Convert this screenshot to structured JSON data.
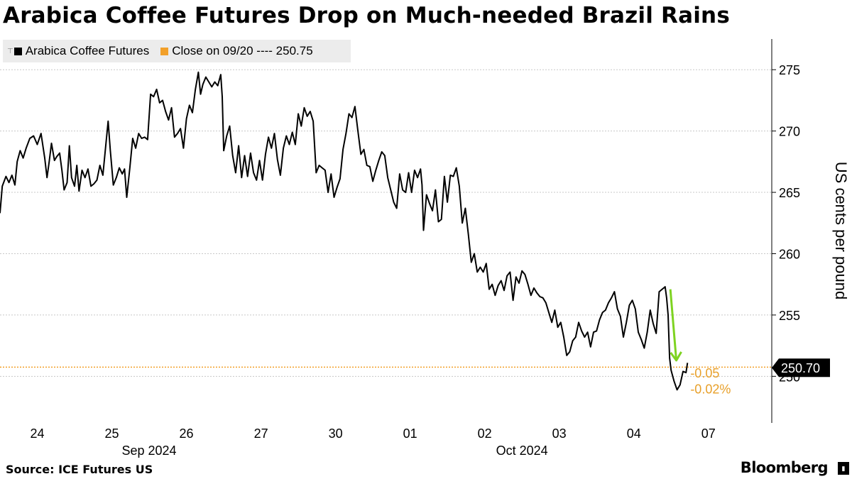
{
  "headline": "Arabica Coffee Futures Drop on Much-needed Brazil Rains",
  "legend": {
    "series_label": "Arabica Coffee Futures",
    "close_label": "Close on 09/20 ---- 250.75"
  },
  "colors": {
    "series": "#000000",
    "close": "#f2a02a",
    "arrow": "#7ed321",
    "change": "#e8a02a",
    "grid": "#c8c8c8"
  },
  "source": "Source: ICE Futures US",
  "brand": "Bloomberg",
  "chart_data": {
    "type": "line",
    "title": "Arabica Coffee Futures Drop on Much-needed Brazil Rains",
    "ylabel": "US cents per pound",
    "ylim": [
      246.2,
      277.5
    ],
    "y_ticks": [
      250,
      255,
      260,
      265,
      270,
      275
    ],
    "x_ticks": [
      "24",
      "25",
      "26",
      "27",
      "30",
      "01",
      "02",
      "03",
      "04",
      "07"
    ],
    "x_groups": [
      "Sep 2024",
      "Oct 2024"
    ],
    "x_range": [
      0,
      10.35
    ],
    "reference_line": {
      "label": "Close on 09/20",
      "value": 250.75
    },
    "last_value": {
      "value": 250.7,
      "label": "250.70"
    },
    "change": {
      "abs": "-0.05",
      "pct": "-0.02%"
    },
    "series": [
      {
        "name": "Arabica Coffee Futures",
        "points": [
          [
            0.0,
            263.3
          ],
          [
            0.03,
            265.5
          ],
          [
            0.08,
            266.3
          ],
          [
            0.12,
            265.8
          ],
          [
            0.16,
            266.4
          ],
          [
            0.2,
            265.6
          ],
          [
            0.23,
            267.5
          ],
          [
            0.27,
            268.4
          ],
          [
            0.31,
            267.8
          ],
          [
            0.35,
            268.6
          ],
          [
            0.4,
            269.4
          ],
          [
            0.45,
            269.6
          ],
          [
            0.5,
            268.9
          ],
          [
            0.55,
            269.8
          ],
          [
            0.6,
            267.8
          ],
          [
            0.63,
            266.2
          ],
          [
            0.66,
            267.5
          ],
          [
            0.69,
            269.0
          ],
          [
            0.73,
            267.6
          ],
          [
            0.76,
            267.9
          ],
          [
            0.8,
            268.2
          ],
          [
            0.83,
            266.8
          ],
          [
            0.86,
            265.2
          ],
          [
            0.9,
            265.8
          ],
          [
            0.93,
            268.8
          ],
          [
            0.96,
            266.2
          ],
          [
            1.0,
            265.5
          ],
          [
            1.03,
            267.2
          ],
          [
            1.06,
            265.1
          ],
          [
            1.1,
            266.8
          ],
          [
            1.14,
            266.2
          ],
          [
            1.18,
            266.9
          ],
          [
            1.22,
            265.5
          ],
          [
            1.26,
            265.7
          ],
          [
            1.3,
            266.0
          ],
          [
            1.34,
            267.2
          ],
          [
            1.38,
            266.4
          ],
          [
            1.42,
            268.9
          ],
          [
            1.45,
            270.8
          ],
          [
            1.48,
            268.4
          ],
          [
            1.52,
            265.6
          ],
          [
            1.56,
            266.2
          ],
          [
            1.6,
            267.0
          ],
          [
            1.64,
            266.5
          ],
          [
            1.67,
            266.9
          ],
          [
            1.7,
            264.6
          ],
          [
            1.74,
            266.9
          ],
          [
            1.78,
            269.4
          ],
          [
            1.82,
            268.6
          ],
          [
            1.86,
            269.8
          ],
          [
            1.9,
            269.4
          ],
          [
            1.94,
            269.5
          ],
          [
            1.98,
            269.3
          ],
          [
            2.02,
            273.0
          ],
          [
            2.06,
            272.8
          ],
          [
            2.1,
            273.4
          ],
          [
            2.14,
            272.3
          ],
          [
            2.18,
            272.5
          ],
          [
            2.22,
            271.6
          ],
          [
            2.26,
            270.9
          ],
          [
            2.3,
            271.9
          ],
          [
            2.34,
            269.5
          ],
          [
            2.38,
            269.8
          ],
          [
            2.42,
            270.2
          ],
          [
            2.46,
            268.6
          ],
          [
            2.5,
            271.0
          ],
          [
            2.54,
            272.1
          ],
          [
            2.58,
            271.5
          ],
          [
            2.62,
            273.4
          ],
          [
            2.66,
            274.8
          ],
          [
            2.69,
            273.0
          ],
          [
            2.72,
            273.8
          ],
          [
            2.76,
            274.4
          ],
          [
            2.8,
            274.0
          ],
          [
            2.84,
            273.6
          ],
          [
            2.88,
            274.0
          ],
          [
            2.92,
            273.7
          ],
          [
            2.96,
            274.6
          ],
          [
            2.98,
            272.8
          ],
          [
            3.0,
            268.4
          ],
          [
            3.04,
            269.6
          ],
          [
            3.08,
            270.4
          ],
          [
            3.12,
            268.0
          ],
          [
            3.16,
            266.6
          ],
          [
            3.2,
            268.8
          ],
          [
            3.24,
            266.2
          ],
          [
            3.28,
            268.0
          ],
          [
            3.32,
            266.3
          ],
          [
            3.36,
            268.2
          ],
          [
            3.4,
            266.6
          ],
          [
            3.44,
            266.0
          ],
          [
            3.48,
            267.6
          ],
          [
            3.52,
            266.0
          ],
          [
            3.56,
            268.1
          ],
          [
            3.6,
            269.5
          ],
          [
            3.64,
            268.6
          ],
          [
            3.68,
            269.8
          ],
          [
            3.72,
            267.7
          ],
          [
            3.76,
            266.4
          ],
          [
            3.8,
            268.6
          ],
          [
            3.84,
            269.6
          ],
          [
            3.88,
            268.9
          ],
          [
            3.92,
            269.9
          ],
          [
            3.96,
            268.9
          ],
          [
            4.0,
            271.4
          ],
          [
            4.04,
            270.4
          ],
          [
            4.08,
            271.9
          ],
          [
            4.12,
            271.2
          ],
          [
            4.16,
            271.6
          ],
          [
            4.2,
            270.8
          ],
          [
            4.24,
            266.6
          ],
          [
            4.28,
            267.2
          ],
          [
            4.32,
            267.0
          ],
          [
            4.36,
            266.8
          ],
          [
            4.4,
            265.0
          ],
          [
            4.44,
            266.5
          ],
          [
            4.48,
            264.6
          ],
          [
            4.52,
            265.4
          ],
          [
            4.56,
            266.1
          ],
          [
            4.6,
            268.5
          ],
          [
            4.64,
            269.8
          ],
          [
            4.68,
            271.4
          ],
          [
            4.72,
            271.1
          ],
          [
            4.76,
            272.0
          ],
          [
            4.8,
            270.0
          ],
          [
            4.84,
            268.1
          ],
          [
            4.88,
            268.5
          ],
          [
            4.92,
            267.2
          ],
          [
            4.96,
            267.1
          ],
          [
            5.0,
            265.9
          ],
          [
            5.04,
            266.8
          ],
          [
            5.08,
            267.6
          ],
          [
            5.12,
            268.3
          ],
          [
            5.16,
            268.0
          ],
          [
            5.2,
            266.2
          ],
          [
            5.24,
            265.2
          ],
          [
            5.28,
            264.2
          ],
          [
            5.32,
            263.7
          ],
          [
            5.36,
            266.5
          ],
          [
            5.4,
            265.2
          ],
          [
            5.44,
            265.0
          ],
          [
            5.48,
            266.6
          ],
          [
            5.52,
            265.0
          ],
          [
            5.56,
            266.8
          ],
          [
            5.6,
            266.2
          ],
          [
            5.64,
            266.9
          ],
          [
            5.66,
            265.6
          ],
          [
            5.68,
            261.9
          ],
          [
            5.72,
            264.8
          ],
          [
            5.76,
            264.1
          ],
          [
            5.8,
            263.5
          ],
          [
            5.84,
            265.2
          ],
          [
            5.88,
            262.6
          ],
          [
            5.92,
            262.8
          ],
          [
            5.96,
            266.3
          ],
          [
            6.0,
            264.2
          ],
          [
            6.04,
            266.4
          ],
          [
            6.08,
            266.3
          ],
          [
            6.12,
            267.0
          ],
          [
            6.16,
            265.5
          ],
          [
            6.2,
            262.5
          ],
          [
            6.24,
            263.7
          ],
          [
            6.28,
            261.6
          ],
          [
            6.32,
            259.3
          ],
          [
            6.36,
            260.0
          ],
          [
            6.4,
            258.5
          ],
          [
            6.44,
            258.9
          ],
          [
            6.48,
            258.5
          ],
          [
            6.52,
            259.2
          ],
          [
            6.56,
            257.1
          ],
          [
            6.6,
            257.5
          ],
          [
            6.64,
            256.6
          ],
          [
            6.68,
            257.4
          ],
          [
            6.72,
            257.8
          ],
          [
            6.76,
            257.0
          ],
          [
            6.8,
            258.2
          ],
          [
            6.84,
            258.5
          ],
          [
            6.88,
            256.2
          ],
          [
            6.92,
            258.1
          ],
          [
            6.96,
            257.6
          ],
          [
            7.0,
            258.6
          ],
          [
            7.04,
            258.3
          ],
          [
            7.08,
            257.5
          ],
          [
            7.12,
            256.6
          ],
          [
            7.16,
            257.2
          ],
          [
            7.2,
            256.8
          ],
          [
            7.24,
            256.5
          ],
          [
            7.28,
            256.4
          ],
          [
            7.32,
            256.0
          ],
          [
            7.36,
            255.2
          ],
          [
            7.4,
            254.4
          ],
          [
            7.44,
            255.4
          ],
          [
            7.48,
            254.0
          ],
          [
            7.52,
            254.4
          ],
          [
            7.56,
            253.2
          ],
          [
            7.6,
            251.7
          ],
          [
            7.64,
            252.0
          ],
          [
            7.68,
            252.9
          ],
          [
            7.72,
            253.2
          ],
          [
            7.76,
            254.4
          ],
          [
            7.8,
            253.7
          ],
          [
            7.84,
            253.2
          ],
          [
            7.88,
            253.6
          ],
          [
            7.92,
            252.4
          ],
          [
            7.96,
            253.6
          ],
          [
            8.0,
            253.7
          ],
          [
            8.04,
            254.6
          ],
          [
            8.08,
            255.2
          ],
          [
            8.12,
            255.4
          ],
          [
            8.16,
            256.0
          ],
          [
            8.2,
            256.4
          ],
          [
            8.24,
            256.9
          ],
          [
            8.28,
            255.5
          ],
          [
            8.32,
            254.9
          ],
          [
            8.36,
            253.2
          ],
          [
            8.4,
            254.4
          ],
          [
            8.44,
            255.8
          ],
          [
            8.48,
            256.2
          ],
          [
            8.52,
            255.5
          ],
          [
            8.56,
            253.6
          ],
          [
            8.6,
            253.0
          ],
          [
            8.64,
            252.3
          ],
          [
            8.68,
            253.6
          ],
          [
            8.72,
            255.4
          ],
          [
            8.76,
            254.3
          ],
          [
            8.8,
            253.5
          ],
          [
            8.84,
            256.9
          ],
          [
            8.88,
            257.1
          ],
          [
            8.92,
            257.3
          ],
          [
            8.94,
            256.4
          ],
          [
            8.96,
            255.0
          ],
          [
            8.98,
            251.5
          ],
          [
            9.0,
            250.5
          ],
          [
            9.04,
            249.6
          ],
          [
            9.08,
            248.9
          ],
          [
            9.12,
            249.3
          ],
          [
            9.16,
            250.4
          ],
          [
            9.2,
            250.3
          ],
          [
            9.22,
            251.1
          ]
        ]
      }
    ]
  }
}
